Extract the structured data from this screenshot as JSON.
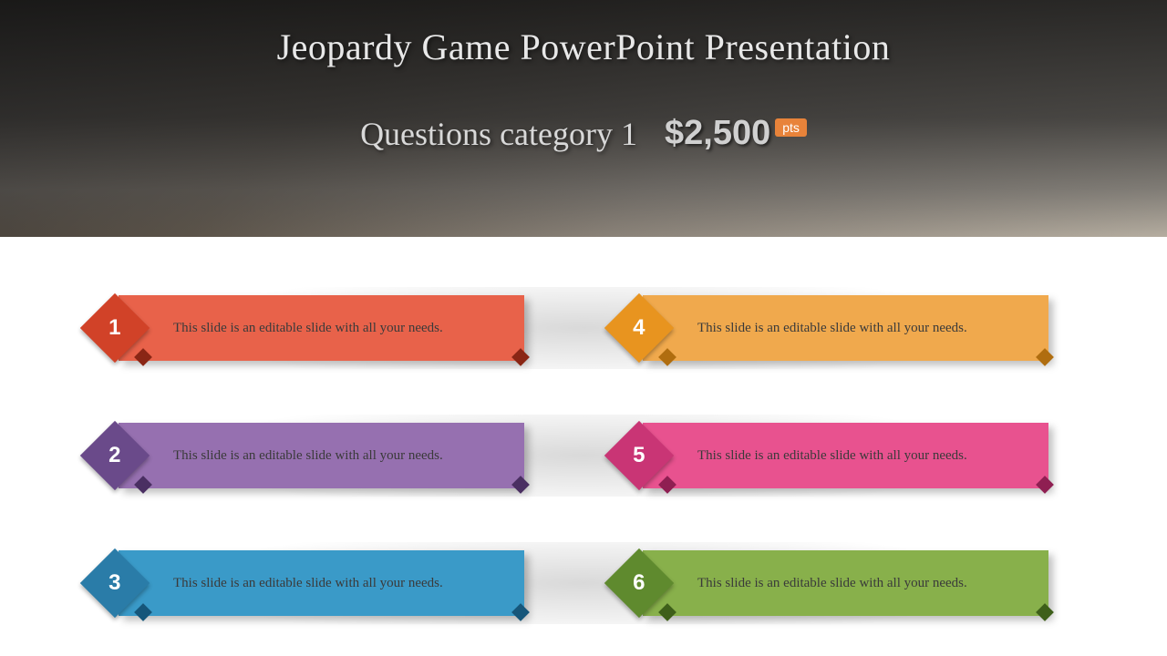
{
  "header": {
    "title": "Jeopardy Game PowerPoint Presentation",
    "subtitle": "Questions category 1",
    "points_value": "$2,500",
    "points_label": "pts"
  },
  "cards": [
    {
      "number": "1",
      "text": "This slide is an editable slide with all your needs.",
      "body_color": "#e8624a",
      "diamond_color": "#d14228",
      "corner_color": "#8a2615"
    },
    {
      "number": "4",
      "text": "This slide is an editable slide with all your needs.",
      "body_color": "#f0a94d",
      "diamond_color": "#e8941f",
      "corner_color": "#b06d0f"
    },
    {
      "number": "2",
      "text": "This slide is an editable slide with all your needs.",
      "body_color": "#9670b0",
      "diamond_color": "#6a4a8a",
      "corner_color": "#4a2f62"
    },
    {
      "number": "5",
      "text": "This slide is an editable slide with all your needs.",
      "body_color": "#e8528f",
      "diamond_color": "#c93575",
      "corner_color": "#8f1f52"
    },
    {
      "number": "3",
      "text": "This slide is an editable slide with all your needs.",
      "body_color": "#3a9ac8",
      "diamond_color": "#2a7ca8",
      "corner_color": "#16567a"
    },
    {
      "number": "6",
      "text": "This slide is an editable slide with all your needs.",
      "body_color": "#88b04b",
      "diamond_color": "#5f8a2e",
      "corner_color": "#3e5f1a"
    }
  ]
}
